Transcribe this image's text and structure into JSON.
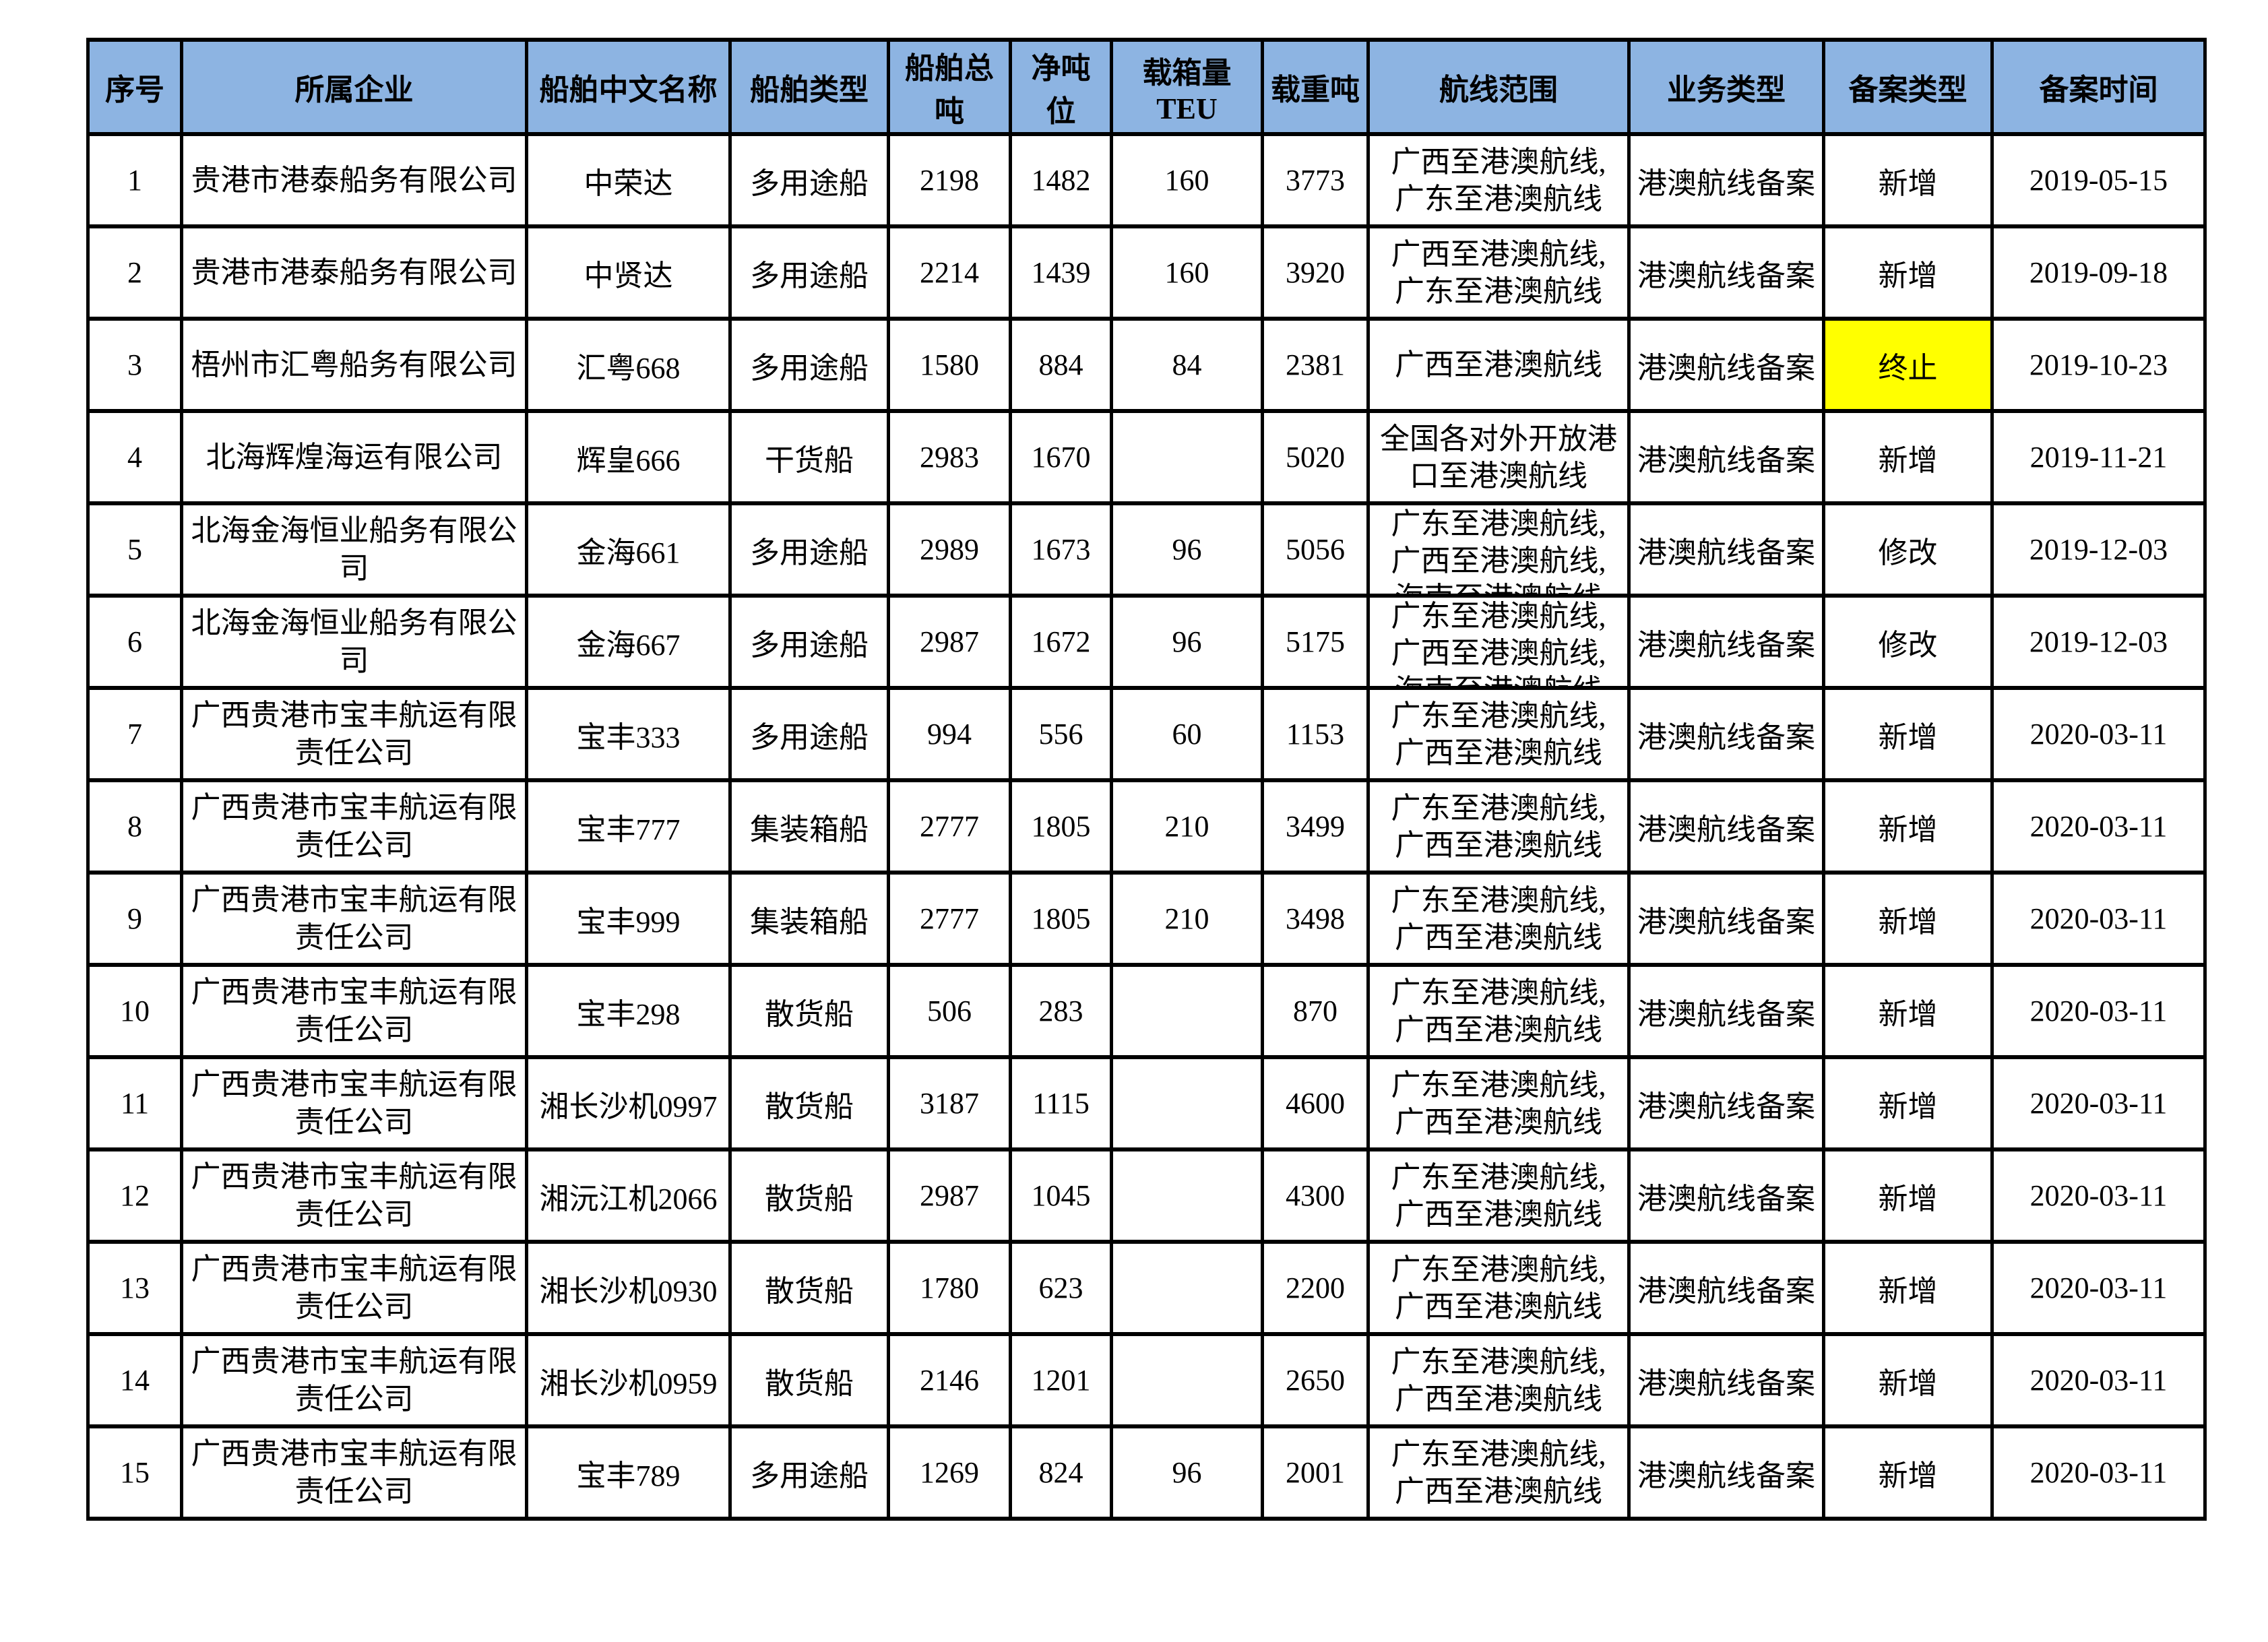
{
  "colors": {
    "header_bg": "#8DB4E2",
    "highlight_bg": "#FFFF00",
    "border": "#000000",
    "page_bg": "#FFFFFF"
  },
  "table": {
    "headers": [
      "序号",
      "所属企业",
      "船舶中文名称",
      "船舶类型",
      "船舶总吨",
      "净吨位",
      "载箱量TEU",
      "载重吨",
      "航线范围",
      "业务类型",
      "备案类型",
      "备案时间"
    ],
    "rows": [
      {
        "seq": "1",
        "company": "贵港市港泰船务有限公司",
        "ship_name": "中荣达",
        "ship_type": "多用途船",
        "gross": "2198",
        "net": "1482",
        "teu": "160",
        "dwt": "3773",
        "route": "广西至港澳航线,\n广东至港澳航线",
        "route_clip": false,
        "business": "港澳航线备案",
        "filing": "新增",
        "filing_highlight": false,
        "date": "2019-05-15"
      },
      {
        "seq": "2",
        "company": "贵港市港泰船务有限公司",
        "ship_name": "中贤达",
        "ship_type": "多用途船",
        "gross": "2214",
        "net": "1439",
        "teu": "160",
        "dwt": "3920",
        "route": "广西至港澳航线,\n广东至港澳航线",
        "route_clip": false,
        "business": "港澳航线备案",
        "filing": "新增",
        "filing_highlight": false,
        "date": "2019-09-18"
      },
      {
        "seq": "3",
        "company": "梧州市汇粤船务有限公司",
        "ship_name": "汇粤668",
        "ship_type": "多用途船",
        "gross": "1580",
        "net": "884",
        "teu": "84",
        "dwt": "2381",
        "route": "广西至港澳航线",
        "route_clip": false,
        "business": "港澳航线备案",
        "filing": "终止",
        "filing_highlight": true,
        "date": "2019-10-23"
      },
      {
        "seq": "4",
        "company": "北海辉煌海运有限公司",
        "ship_name": "辉皇666",
        "ship_type": "干货船",
        "gross": "2983",
        "net": "1670",
        "teu": "",
        "dwt": "5020",
        "route": "全国各对外开放港口至港澳航线",
        "route_clip": false,
        "business": "港澳航线备案",
        "filing": "新增",
        "filing_highlight": false,
        "date": "2019-11-21"
      },
      {
        "seq": "5",
        "company": "北海金海恒业船务有限公司",
        "ship_name": "金海661",
        "ship_type": "多用途船",
        "gross": "2989",
        "net": "1673",
        "teu": "96",
        "dwt": "5056",
        "route": "广东至港澳航线,\n广西至港澳航线,\n海南至港澳航线",
        "route_clip": true,
        "business": "港澳航线备案",
        "filing": "修改",
        "filing_highlight": false,
        "date": "2019-12-03"
      },
      {
        "seq": "6",
        "company": "北海金海恒业船务有限公司",
        "ship_name": "金海667",
        "ship_type": "多用途船",
        "gross": "2987",
        "net": "1672",
        "teu": "96",
        "dwt": "5175",
        "route": "广东至港澳航线,\n广西至港澳航线,\n海南至港澳航线",
        "route_clip": true,
        "business": "港澳航线备案",
        "filing": "修改",
        "filing_highlight": false,
        "date": "2019-12-03"
      },
      {
        "seq": "7",
        "company": "广西贵港市宝丰航运有限责任公司",
        "ship_name": "宝丰333",
        "ship_type": "多用途船",
        "gross": "994",
        "net": "556",
        "teu": "60",
        "dwt": "1153",
        "route": "广东至港澳航线,\n广西至港澳航线",
        "route_clip": false,
        "business": "港澳航线备案",
        "filing": "新增",
        "filing_highlight": false,
        "date": "2020-03-11"
      },
      {
        "seq": "8",
        "company": "广西贵港市宝丰航运有限责任公司",
        "ship_name": "宝丰777",
        "ship_type": "集装箱船",
        "gross": "2777",
        "net": "1805",
        "teu": "210",
        "dwt": "3499",
        "route": "广东至港澳航线,\n广西至港澳航线",
        "route_clip": false,
        "business": "港澳航线备案",
        "filing": "新增",
        "filing_highlight": false,
        "date": "2020-03-11"
      },
      {
        "seq": "9",
        "company": "广西贵港市宝丰航运有限责任公司",
        "ship_name": "宝丰999",
        "ship_type": "集装箱船",
        "gross": "2777",
        "net": "1805",
        "teu": "210",
        "dwt": "3498",
        "route": "广东至港澳航线,\n广西至港澳航线",
        "route_clip": false,
        "business": "港澳航线备案",
        "filing": "新增",
        "filing_highlight": false,
        "date": "2020-03-11"
      },
      {
        "seq": "10",
        "company": "广西贵港市宝丰航运有限责任公司",
        "ship_name": "宝丰298",
        "ship_type": "散货船",
        "gross": "506",
        "net": "283",
        "teu": "",
        "dwt": "870",
        "route": "广东至港澳航线,\n广西至港澳航线",
        "route_clip": false,
        "business": "港澳航线备案",
        "filing": "新增",
        "filing_highlight": false,
        "date": "2020-03-11"
      },
      {
        "seq": "11",
        "company": "广西贵港市宝丰航运有限责任公司",
        "ship_name": "湘长沙机0997",
        "ship_type": "散货船",
        "gross": "3187",
        "net": "1115",
        "teu": "",
        "dwt": "4600",
        "route": "广东至港澳航线,\n广西至港澳航线",
        "route_clip": false,
        "business": "港澳航线备案",
        "filing": "新增",
        "filing_highlight": false,
        "date": "2020-03-11"
      },
      {
        "seq": "12",
        "company": "广西贵港市宝丰航运有限责任公司",
        "ship_name": "湘沅江机2066",
        "ship_type": "散货船",
        "gross": "2987",
        "net": "1045",
        "teu": "",
        "dwt": "4300",
        "route": "广东至港澳航线,\n广西至港澳航线",
        "route_clip": false,
        "business": "港澳航线备案",
        "filing": "新增",
        "filing_highlight": false,
        "date": "2020-03-11"
      },
      {
        "seq": "13",
        "company": "广西贵港市宝丰航运有限责任公司",
        "ship_name": "湘长沙机0930",
        "ship_type": "散货船",
        "gross": "1780",
        "net": "623",
        "teu": "",
        "dwt": "2200",
        "route": "广东至港澳航线,\n广西至港澳航线",
        "route_clip": false,
        "business": "港澳航线备案",
        "filing": "新增",
        "filing_highlight": false,
        "date": "2020-03-11"
      },
      {
        "seq": "14",
        "company": "广西贵港市宝丰航运有限责任公司",
        "ship_name": "湘长沙机0959",
        "ship_type": "散货船",
        "gross": "2146",
        "net": "1201",
        "teu": "",
        "dwt": "2650",
        "route": "广东至港澳航线,\n广西至港澳航线",
        "route_clip": false,
        "business": "港澳航线备案",
        "filing": "新增",
        "filing_highlight": false,
        "date": "2020-03-11"
      },
      {
        "seq": "15",
        "company": "广西贵港市宝丰航运有限责任公司",
        "ship_name": "宝丰789",
        "ship_type": "多用途船",
        "gross": "1269",
        "net": "824",
        "teu": "96",
        "dwt": "2001",
        "route": "广东至港澳航线,\n广西至港澳航线",
        "route_clip": false,
        "business": "港澳航线备案",
        "filing": "新增",
        "filing_highlight": false,
        "date": "2020-03-11"
      }
    ]
  }
}
